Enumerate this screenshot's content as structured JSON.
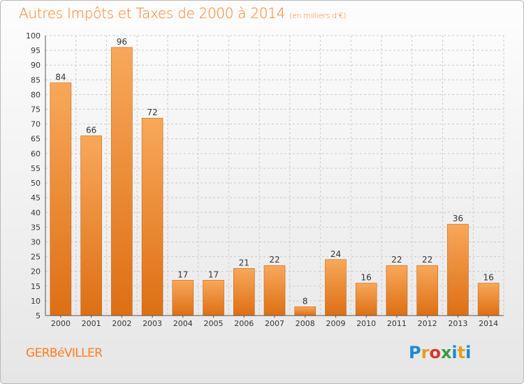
{
  "header": {
    "title": "Autres Impôts et Taxes de 2000 à 2014",
    "subtitle": "(en milliers d'€)"
  },
  "footer": {
    "commune": "GERBéVILLER",
    "logo": {
      "letters": [
        "P",
        "r",
        "o",
        "x",
        "i",
        "t",
        "i"
      ],
      "colors": [
        "#1e88d6",
        "#e0a21a",
        "#d6382e",
        "#3b9c3b",
        "#1e88d6",
        "#e0a21a",
        "#1e88d6"
      ]
    }
  },
  "colors": {
    "title": "#ff7b1e",
    "bar_top": "#f8a85a",
    "bar_bottom": "#dd6f14",
    "bar_stroke": "#c96410",
    "grid": "#cccccc",
    "axis_text": "#333333"
  },
  "chart_data": {
    "type": "bar",
    "categories": [
      "2000",
      "2001",
      "2002",
      "2003",
      "2004",
      "2005",
      "2006",
      "2007",
      "2008",
      "2009",
      "2010",
      "2011",
      "2012",
      "2013",
      "2014"
    ],
    "values": [
      84,
      66,
      96,
      72,
      17,
      17,
      21,
      22,
      8,
      24,
      16,
      22,
      22,
      36,
      16
    ],
    "data_labels": [
      "84",
      "66",
      "96",
      "72",
      "17",
      "17",
      "21",
      "22",
      "8",
      "24",
      "16",
      "22",
      "22",
      "36",
      "16"
    ],
    "title": "Autres Impôts et Taxes de 2000 à 2014",
    "xlabel": "",
    "ylabel": "",
    "ylim": [
      5,
      100
    ],
    "yticks": [
      5,
      10,
      15,
      20,
      25,
      30,
      35,
      40,
      45,
      50,
      55,
      60,
      65,
      70,
      75,
      80,
      85,
      90,
      95,
      100
    ],
    "grid": true,
    "legend": "none"
  }
}
